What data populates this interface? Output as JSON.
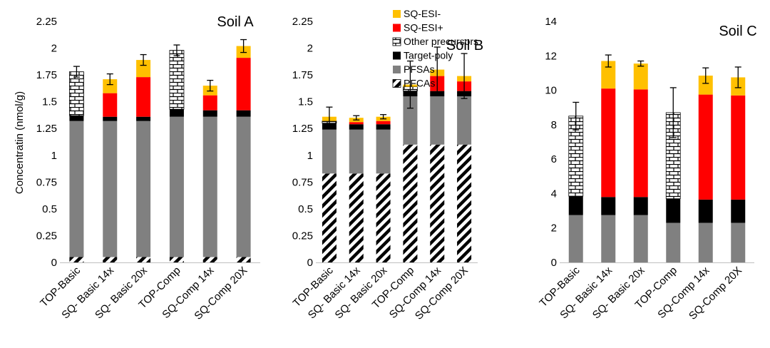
{
  "y_axis_label": "Concentratin (nmol/g)",
  "legend": {
    "entries": [
      {
        "label": "SQ-ESI-",
        "key": "esi_minus"
      },
      {
        "label": "SQ-ESI+",
        "key": "esi_plus"
      },
      {
        "label": "Other precursors",
        "key": "other"
      },
      {
        "label": "Target-poly",
        "key": "target"
      },
      {
        "label": "PFSAs",
        "key": "pfsa"
      },
      {
        "label": "PFCAs",
        "key": "pfca"
      }
    ]
  },
  "colors": {
    "esi_minus": "#ffc000",
    "esi_plus": "#ff0000",
    "target": "#000000",
    "pfsa": "#808080",
    "axis": "#bfbfbf"
  },
  "chart_data": [
    {
      "type": "bar",
      "stacked": true,
      "title": "Soil A",
      "categories": [
        "TOP-Basic",
        "SQ- Basic 14x",
        "SQ- Basic 20x",
        "TOP-Comp",
        "SQ-Comp 14x",
        "SQ-Comp 20X"
      ],
      "ylim": [
        0,
        2.25
      ],
      "yticks": [
        "0",
        "0.25",
        "0.5",
        "0.75",
        "1",
        "1.25",
        "1.5",
        "1.75",
        "2",
        "2.25"
      ],
      "ylabel": "Concentratin (nmol/g)",
      "series": [
        {
          "name": "PFCAs",
          "key": "pfca",
          "values": [
            0.05,
            0.05,
            0.05,
            0.05,
            0.05,
            0.05
          ]
        },
        {
          "name": "PFSAs",
          "key": "pfsa",
          "values": [
            1.27,
            1.27,
            1.27,
            1.31,
            1.31,
            1.31
          ]
        },
        {
          "name": "Target-poly",
          "key": "target",
          "values": [
            0.05,
            0.04,
            0.04,
            0.07,
            0.06,
            0.06
          ]
        },
        {
          "name": "Other precursors",
          "key": "other",
          "values": [
            0.41,
            0,
            0,
            0.55,
            0,
            0
          ]
        },
        {
          "name": "SQ-ESI+",
          "key": "esi_plus",
          "values": [
            0,
            0.22,
            0.37,
            0,
            0.14,
            0.49
          ]
        },
        {
          "name": "SQ-ESI-",
          "key": "esi_minus",
          "values": [
            0,
            0.13,
            0.16,
            0,
            0.09,
            0.11
          ]
        }
      ],
      "error_bars": [
        0.05,
        0.05,
        0.05,
        0.05,
        0.05,
        0.06
      ]
    },
    {
      "type": "bar",
      "stacked": true,
      "title": "Soil B",
      "categories": [
        "TOP-Basic",
        "SQ- Basic 14x",
        "SQ- Basic 20x",
        "TOP-Comp",
        "SQ-Comp 14x",
        "SQ-Comp 20X"
      ],
      "ylim": [
        0,
        2.25
      ],
      "yticks": [
        "0",
        "0.25",
        "0.5",
        "0.75",
        "1",
        "1.25",
        "1.5",
        "1.75",
        "2",
        "2.25"
      ],
      "ylabel": "",
      "series": [
        {
          "name": "PFCAs",
          "key": "pfca",
          "values": [
            0.83,
            0.83,
            0.83,
            1.1,
            1.1,
            1.1
          ]
        },
        {
          "name": "PFSAs",
          "key": "pfsa",
          "values": [
            0.41,
            0.41,
            0.41,
            0.45,
            0.45,
            0.45
          ]
        },
        {
          "name": "Target-poly",
          "key": "target",
          "values": [
            0.06,
            0.05,
            0.05,
            0.05,
            0.05,
            0.05
          ]
        },
        {
          "name": "Other precursors",
          "key": "other",
          "values": [
            0.02,
            0,
            0,
            0.04,
            0,
            0
          ]
        },
        {
          "name": "SQ-ESI+",
          "key": "esi_plus",
          "values": [
            0,
            0.02,
            0.03,
            0,
            0.14,
            0.09
          ]
        },
        {
          "name": "SQ-ESI-",
          "key": "esi_minus",
          "values": [
            0.04,
            0.04,
            0.04,
            0.02,
            0.06,
            0.05
          ]
        }
      ],
      "error_bars": [
        0.09,
        0.02,
        0.02,
        0.22,
        0.21,
        0.21
      ]
    },
    {
      "type": "bar",
      "stacked": true,
      "title": "Soil C",
      "categories": [
        "TOP-Basic",
        "SQ- Basic 14x",
        "SQ- Basic 20x",
        "TOP-Comp",
        "SQ-Comp 14x",
        "SQ-Comp 20X"
      ],
      "ylim": [
        0,
        14
      ],
      "yticks": [
        "0",
        "2",
        "4",
        "6",
        "8",
        "10",
        "12",
        "14"
      ],
      "ylabel": "",
      "series": [
        {
          "name": "PFCAs",
          "key": "pfca",
          "values": [
            0,
            0,
            0,
            0,
            0,
            0
          ]
        },
        {
          "name": "PFSAs",
          "key": "pfsa",
          "values": [
            2.75,
            2.75,
            2.75,
            2.3,
            2.3,
            2.3
          ]
        },
        {
          "name": "Target-poly",
          "key": "target",
          "values": [
            1.1,
            1.05,
            1.05,
            1.4,
            1.35,
            1.35
          ]
        },
        {
          "name": "Other precursors",
          "key": "other",
          "values": [
            4.65,
            0,
            0,
            5.0,
            0,
            0
          ]
        },
        {
          "name": "SQ-ESI+",
          "key": "esi_plus",
          "values": [
            0,
            6.3,
            6.25,
            0,
            6.1,
            6.05
          ]
        },
        {
          "name": "SQ-ESI-",
          "key": "esi_minus",
          "values": [
            0,
            1.6,
            1.5,
            0,
            1.1,
            1.05
          ]
        }
      ],
      "error_bars": [
        0.8,
        0.35,
        0.15,
        1.45,
        0.45,
        0.6
      ]
    }
  ]
}
